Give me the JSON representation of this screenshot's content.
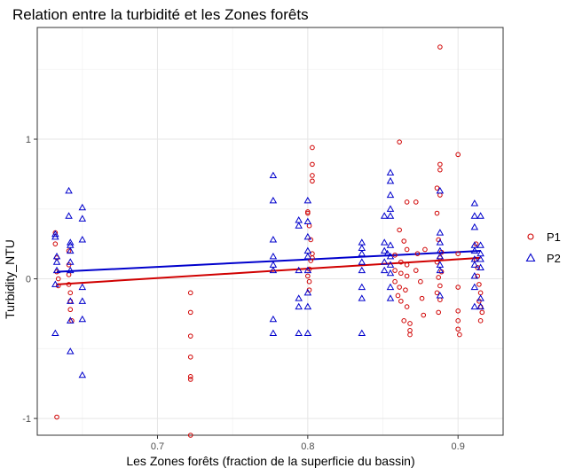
{
  "chart_data": {
    "type": "scatter",
    "title": "Relation entre la turbidité et les Zones forêts",
    "xlabel": "Les Zones forêts (fraction de la superficie du bassin)",
    "ylabel": "Turbidity_NTU",
    "xlim": [
      0.62,
      0.93
    ],
    "ylim": [
      -1.12,
      1.8
    ],
    "x_ticks": [
      0.7,
      0.8,
      0.9
    ],
    "x_tick_labels": [
      "0.7",
      "0.8",
      "0.9"
    ],
    "y_ticks": [
      -1,
      0,
      1
    ],
    "y_tick_labels": [
      "-1",
      "0",
      "1"
    ],
    "grid": true,
    "legend_position": "right",
    "series": [
      {
        "name": "P1",
        "color": "#d00000",
        "marker": "circle",
        "trend": {
          "x": [
            0.633,
            0.915
          ],
          "y": [
            -0.04,
            0.15
          ]
        },
        "points": [
          [
            0.632,
            0.33
          ],
          [
            0.632,
            0.25
          ],
          [
            0.633,
            0.15
          ],
          [
            0.633,
            0.05
          ],
          [
            0.634,
            0.0
          ],
          [
            0.634,
            -0.05
          ],
          [
            0.633,
            -0.99
          ],
          [
            0.641,
            0.2
          ],
          [
            0.641,
            0.1
          ],
          [
            0.641,
            0.03
          ],
          [
            0.641,
            -0.04
          ],
          [
            0.642,
            -0.1
          ],
          [
            0.642,
            -0.16
          ],
          [
            0.642,
            -0.22
          ],
          [
            0.643,
            -0.3
          ],
          [
            0.722,
            -0.1
          ],
          [
            0.722,
            -0.24
          ],
          [
            0.722,
            -0.41
          ],
          [
            0.722,
            -0.56
          ],
          [
            0.722,
            -0.7
          ],
          [
            0.722,
            -0.72
          ],
          [
            0.722,
            -1.12
          ],
          [
            0.8,
            0.47
          ],
          [
            0.8,
            0.48
          ],
          [
            0.803,
            0.94
          ],
          [
            0.803,
            0.82
          ],
          [
            0.803,
            0.74
          ],
          [
            0.803,
            0.7
          ],
          [
            0.801,
            0.38
          ],
          [
            0.802,
            0.28
          ],
          [
            0.803,
            0.18
          ],
          [
            0.803,
            0.15
          ],
          [
            0.802,
            0.13
          ],
          [
            0.801,
            0.07
          ],
          [
            0.8,
            0.02
          ],
          [
            0.801,
            -0.02
          ],
          [
            0.801,
            -0.08
          ],
          [
            0.861,
            0.98
          ],
          [
            0.866,
            0.55
          ],
          [
            0.872,
            0.55
          ],
          [
            0.861,
            0.35
          ],
          [
            0.864,
            0.27
          ],
          [
            0.866,
            0.21
          ],
          [
            0.858,
            0.17
          ],
          [
            0.862,
            0.12
          ],
          [
            0.866,
            0.1
          ],
          [
            0.858,
            0.06
          ],
          [
            0.862,
            0.04
          ],
          [
            0.866,
            0.02
          ],
          [
            0.858,
            -0.02
          ],
          [
            0.861,
            -0.06
          ],
          [
            0.865,
            -0.08
          ],
          [
            0.86,
            -0.12
          ],
          [
            0.862,
            -0.16
          ],
          [
            0.866,
            -0.2
          ],
          [
            0.864,
            -0.3
          ],
          [
            0.868,
            -0.32
          ],
          [
            0.868,
            -0.37
          ],
          [
            0.868,
            -0.4
          ],
          [
            0.872,
            0.06
          ],
          [
            0.873,
            0.18
          ],
          [
            0.875,
            -0.02
          ],
          [
            0.876,
            -0.14
          ],
          [
            0.877,
            -0.26
          ],
          [
            0.878,
            0.21
          ],
          [
            0.888,
            1.66
          ],
          [
            0.888,
            0.82
          ],
          [
            0.888,
            0.78
          ],
          [
            0.886,
            0.65
          ],
          [
            0.888,
            0.6
          ],
          [
            0.886,
            0.47
          ],
          [
            0.887,
            0.28
          ],
          [
            0.889,
            0.19
          ],
          [
            0.888,
            0.15
          ],
          [
            0.886,
            0.12
          ],
          [
            0.889,
            0.05
          ],
          [
            0.887,
            0.01
          ],
          [
            0.888,
            -0.05
          ],
          [
            0.886,
            -0.1
          ],
          [
            0.888,
            -0.15
          ],
          [
            0.887,
            -0.24
          ],
          [
            0.9,
            0.89
          ],
          [
            0.9,
            0.18
          ],
          [
            0.9,
            -0.06
          ],
          [
            0.9,
            -0.23
          ],
          [
            0.9,
            -0.3
          ],
          [
            0.9,
            -0.36
          ],
          [
            0.901,
            -0.4
          ],
          [
            0.912,
            0.25
          ],
          [
            0.912,
            0.14
          ],
          [
            0.913,
            0.08
          ],
          [
            0.913,
            0.02
          ],
          [
            0.914,
            -0.04
          ],
          [
            0.915,
            -0.1
          ],
          [
            0.914,
            -0.16
          ],
          [
            0.915,
            -0.2
          ],
          [
            0.916,
            -0.24
          ],
          [
            0.915,
            -0.3
          ]
        ]
      },
      {
        "name": "P2",
        "color": "#0000cc",
        "marker": "triangle",
        "trend": {
          "x": [
            0.633,
            0.915
          ],
          "y": [
            0.05,
            0.2
          ]
        },
        "points": [
          [
            0.632,
            0.32
          ],
          [
            0.632,
            0.3
          ],
          [
            0.633,
            0.16
          ],
          [
            0.633,
            0.12
          ],
          [
            0.633,
            0.06
          ],
          [
            0.632,
            -0.04
          ],
          [
            0.632,
            -0.39
          ],
          [
            0.641,
            0.63
          ],
          [
            0.641,
            0.45
          ],
          [
            0.642,
            0.26
          ],
          [
            0.642,
            0.24
          ],
          [
            0.642,
            0.2
          ],
          [
            0.642,
            0.12
          ],
          [
            0.642,
            0.06
          ],
          [
            0.642,
            -0.16
          ],
          [
            0.642,
            -0.3
          ],
          [
            0.642,
            -0.52
          ],
          [
            0.65,
            0.51
          ],
          [
            0.65,
            0.43
          ],
          [
            0.65,
            0.28
          ],
          [
            0.65,
            -0.06
          ],
          [
            0.65,
            -0.16
          ],
          [
            0.65,
            -0.29
          ],
          [
            0.65,
            -0.69
          ],
          [
            0.777,
            0.74
          ],
          [
            0.777,
            0.56
          ],
          [
            0.777,
            0.28
          ],
          [
            0.777,
            0.16
          ],
          [
            0.777,
            0.1
          ],
          [
            0.777,
            0.06
          ],
          [
            0.777,
            -0.29
          ],
          [
            0.777,
            -0.39
          ],
          [
            0.794,
            0.42
          ],
          [
            0.794,
            0.38
          ],
          [
            0.794,
            0.06
          ],
          [
            0.794,
            -0.14
          ],
          [
            0.794,
            -0.2
          ],
          [
            0.794,
            -0.39
          ],
          [
            0.8,
            0.56
          ],
          [
            0.8,
            0.41
          ],
          [
            0.8,
            0.3
          ],
          [
            0.8,
            0.2
          ],
          [
            0.8,
            0.16
          ],
          [
            0.8,
            0.06
          ],
          [
            0.8,
            -0.1
          ],
          [
            0.8,
            -0.2
          ],
          [
            0.8,
            -0.39
          ],
          [
            0.836,
            0.26
          ],
          [
            0.836,
            0.22
          ],
          [
            0.836,
            0.18
          ],
          [
            0.836,
            0.12
          ],
          [
            0.836,
            0.06
          ],
          [
            0.836,
            -0.06
          ],
          [
            0.836,
            -0.14
          ],
          [
            0.836,
            -0.39
          ],
          [
            0.851,
            0.45
          ],
          [
            0.851,
            0.26
          ],
          [
            0.851,
            0.2
          ],
          [
            0.851,
            0.12
          ],
          [
            0.851,
            0.06
          ],
          [
            0.853,
            0.18
          ],
          [
            0.855,
            0.76
          ],
          [
            0.855,
            0.7
          ],
          [
            0.855,
            0.6
          ],
          [
            0.855,
            0.5
          ],
          [
            0.855,
            0.45
          ],
          [
            0.855,
            0.24
          ],
          [
            0.855,
            0.16
          ],
          [
            0.855,
            0.1
          ],
          [
            0.855,
            0.04
          ],
          [
            0.855,
            -0.06
          ],
          [
            0.855,
            -0.14
          ],
          [
            0.888,
            0.63
          ],
          [
            0.888,
            0.33
          ],
          [
            0.888,
            0.26
          ],
          [
            0.888,
            0.2
          ],
          [
            0.888,
            0.16
          ],
          [
            0.888,
            0.1
          ],
          [
            0.888,
            0.06
          ],
          [
            0.888,
            -0.12
          ],
          [
            0.911,
            0.54
          ],
          [
            0.911,
            0.45
          ],
          [
            0.911,
            0.37
          ],
          [
            0.911,
            0.24
          ],
          [
            0.911,
            0.2
          ],
          [
            0.911,
            0.14
          ],
          [
            0.911,
            0.1
          ],
          [
            0.911,
            0.02
          ],
          [
            0.911,
            -0.06
          ],
          [
            0.911,
            -0.2
          ],
          [
            0.915,
            0.45
          ],
          [
            0.915,
            0.24
          ],
          [
            0.915,
            0.18
          ],
          [
            0.915,
            0.14
          ],
          [
            0.915,
            0.08
          ],
          [
            0.915,
            -0.14
          ],
          [
            0.915,
            -0.2
          ]
        ]
      }
    ]
  }
}
